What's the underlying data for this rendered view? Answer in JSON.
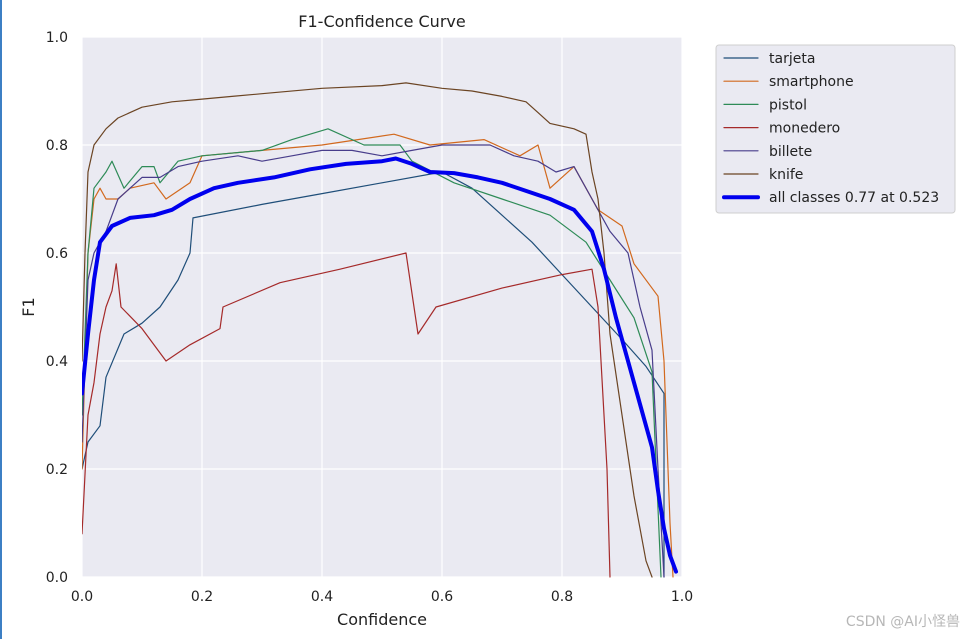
{
  "chart_data": {
    "type": "line",
    "title": "F1-Confidence Curve",
    "xlabel": "Confidence",
    "ylabel": "F1",
    "xlim": [
      0,
      1
    ],
    "ylim": [
      0,
      1
    ],
    "xticks": [
      "0.0",
      "0.2",
      "0.4",
      "0.6",
      "0.8",
      "1.0"
    ],
    "yticks": [
      "0.0",
      "0.2",
      "0.4",
      "0.6",
      "0.8",
      "1.0"
    ],
    "grid": true,
    "legend_position": "outside-top-right",
    "series": [
      {
        "name": "tarjeta",
        "color": "#1f4e79",
        "width": 1.2,
        "points": [
          [
            0.0,
            0.2
          ],
          [
            0.01,
            0.25
          ],
          [
            0.03,
            0.28
          ],
          [
            0.04,
            0.37
          ],
          [
            0.07,
            0.45
          ],
          [
            0.1,
            0.47
          ],
          [
            0.13,
            0.5
          ],
          [
            0.16,
            0.55
          ],
          [
            0.18,
            0.6
          ],
          [
            0.185,
            0.665
          ],
          [
            0.3,
            0.69
          ],
          [
            0.4,
            0.71
          ],
          [
            0.5,
            0.73
          ],
          [
            0.6,
            0.75
          ],
          [
            0.65,
            0.72
          ],
          [
            0.7,
            0.67
          ],
          [
            0.75,
            0.62
          ],
          [
            0.8,
            0.56
          ],
          [
            0.85,
            0.5
          ],
          [
            0.9,
            0.44
          ],
          [
            0.94,
            0.39
          ],
          [
            0.97,
            0.34
          ],
          [
            0.97,
            0.0
          ]
        ]
      },
      {
        "name": "smartphone",
        "color": "#d2691e",
        "width": 1.2,
        "points": [
          [
            0.0,
            0.2
          ],
          [
            0.01,
            0.6
          ],
          [
            0.02,
            0.7
          ],
          [
            0.03,
            0.72
          ],
          [
            0.04,
            0.7
          ],
          [
            0.06,
            0.7
          ],
          [
            0.08,
            0.72
          ],
          [
            0.12,
            0.73
          ],
          [
            0.14,
            0.7
          ],
          [
            0.18,
            0.73
          ],
          [
            0.2,
            0.78
          ],
          [
            0.3,
            0.79
          ],
          [
            0.4,
            0.8
          ],
          [
            0.52,
            0.82
          ],
          [
            0.58,
            0.8
          ],
          [
            0.67,
            0.81
          ],
          [
            0.73,
            0.78
          ],
          [
            0.76,
            0.8
          ],
          [
            0.78,
            0.72
          ],
          [
            0.82,
            0.76
          ],
          [
            0.86,
            0.68
          ],
          [
            0.9,
            0.65
          ],
          [
            0.92,
            0.58
          ],
          [
            0.96,
            0.52
          ],
          [
            0.97,
            0.4
          ],
          [
            0.98,
            0.1
          ],
          [
            0.985,
            0.0
          ]
        ]
      },
      {
        "name": "pistol",
        "color": "#2e8b57",
        "width": 1.2,
        "points": [
          [
            0.0,
            0.3
          ],
          [
            0.01,
            0.6
          ],
          [
            0.02,
            0.72
          ],
          [
            0.04,
            0.75
          ],
          [
            0.05,
            0.77
          ],
          [
            0.07,
            0.72
          ],
          [
            0.1,
            0.76
          ],
          [
            0.12,
            0.76
          ],
          [
            0.13,
            0.73
          ],
          [
            0.16,
            0.77
          ],
          [
            0.2,
            0.78
          ],
          [
            0.3,
            0.79
          ],
          [
            0.35,
            0.81
          ],
          [
            0.41,
            0.83
          ],
          [
            0.47,
            0.8
          ],
          [
            0.53,
            0.8
          ],
          [
            0.55,
            0.77
          ],
          [
            0.62,
            0.73
          ],
          [
            0.7,
            0.7
          ],
          [
            0.78,
            0.67
          ],
          [
            0.84,
            0.62
          ],
          [
            0.88,
            0.55
          ],
          [
            0.92,
            0.48
          ],
          [
            0.95,
            0.38
          ],
          [
            0.965,
            0.0
          ]
        ]
      },
      {
        "name": "monedero",
        "color": "#a52a2a",
        "width": 1.2,
        "points": [
          [
            0.0,
            0.08
          ],
          [
            0.01,
            0.3
          ],
          [
            0.02,
            0.36
          ],
          [
            0.03,
            0.45
          ],
          [
            0.04,
            0.5
          ],
          [
            0.05,
            0.53
          ],
          [
            0.057,
            0.58
          ],
          [
            0.065,
            0.5
          ],
          [
            0.1,
            0.46
          ],
          [
            0.14,
            0.4
          ],
          [
            0.18,
            0.43
          ],
          [
            0.23,
            0.46
          ],
          [
            0.235,
            0.5
          ],
          [
            0.33,
            0.545
          ],
          [
            0.43,
            0.57
          ],
          [
            0.54,
            0.6
          ],
          [
            0.56,
            0.45
          ],
          [
            0.59,
            0.5
          ],
          [
            0.7,
            0.535
          ],
          [
            0.8,
            0.56
          ],
          [
            0.85,
            0.57
          ],
          [
            0.86,
            0.5
          ],
          [
            0.875,
            0.2
          ],
          [
            0.88,
            0.0
          ]
        ]
      },
      {
        "name": "billete",
        "color": "#483d8b",
        "width": 1.2,
        "points": [
          [
            0.0,
            0.25
          ],
          [
            0.01,
            0.55
          ],
          [
            0.02,
            0.6
          ],
          [
            0.04,
            0.64
          ],
          [
            0.06,
            0.7
          ],
          [
            0.08,
            0.72
          ],
          [
            0.1,
            0.74
          ],
          [
            0.13,
            0.74
          ],
          [
            0.16,
            0.76
          ],
          [
            0.2,
            0.77
          ],
          [
            0.26,
            0.78
          ],
          [
            0.3,
            0.77
          ],
          [
            0.35,
            0.78
          ],
          [
            0.4,
            0.79
          ],
          [
            0.45,
            0.79
          ],
          [
            0.5,
            0.78
          ],
          [
            0.55,
            0.79
          ],
          [
            0.6,
            0.8
          ],
          [
            0.68,
            0.8
          ],
          [
            0.72,
            0.78
          ],
          [
            0.76,
            0.77
          ],
          [
            0.79,
            0.75
          ],
          [
            0.82,
            0.76
          ],
          [
            0.85,
            0.7
          ],
          [
            0.88,
            0.64
          ],
          [
            0.91,
            0.6
          ],
          [
            0.93,
            0.5
          ],
          [
            0.95,
            0.42
          ],
          [
            0.96,
            0.2
          ],
          [
            0.97,
            0.0
          ]
        ]
      },
      {
        "name": "knife",
        "color": "#6b4423",
        "width": 1.2,
        "points": [
          [
            0.0,
            0.4
          ],
          [
            0.005,
            0.6
          ],
          [
            0.01,
            0.75
          ],
          [
            0.02,
            0.8
          ],
          [
            0.04,
            0.83
          ],
          [
            0.06,
            0.85
          ],
          [
            0.08,
            0.86
          ],
          [
            0.1,
            0.87
          ],
          [
            0.15,
            0.88
          ],
          [
            0.2,
            0.885
          ],
          [
            0.25,
            0.89
          ],
          [
            0.3,
            0.895
          ],
          [
            0.4,
            0.905
          ],
          [
            0.5,
            0.91
          ],
          [
            0.54,
            0.915
          ],
          [
            0.6,
            0.905
          ],
          [
            0.65,
            0.9
          ],
          [
            0.7,
            0.89
          ],
          [
            0.74,
            0.88
          ],
          [
            0.76,
            0.86
          ],
          [
            0.78,
            0.84
          ],
          [
            0.82,
            0.83
          ],
          [
            0.84,
            0.82
          ],
          [
            0.85,
            0.75
          ],
          [
            0.86,
            0.7
          ],
          [
            0.87,
            0.6
          ],
          [
            0.88,
            0.45
          ],
          [
            0.9,
            0.3
          ],
          [
            0.92,
            0.15
          ],
          [
            0.94,
            0.03
          ],
          [
            0.95,
            0.0
          ]
        ]
      },
      {
        "name": "all classes 0.77 at 0.523",
        "color": "#0000ee",
        "width": 4,
        "points": [
          [
            0.0,
            0.34
          ],
          [
            0.01,
            0.45
          ],
          [
            0.02,
            0.55
          ],
          [
            0.03,
            0.62
          ],
          [
            0.05,
            0.65
          ],
          [
            0.08,
            0.665
          ],
          [
            0.12,
            0.67
          ],
          [
            0.15,
            0.68
          ],
          [
            0.18,
            0.7
          ],
          [
            0.22,
            0.72
          ],
          [
            0.26,
            0.73
          ],
          [
            0.32,
            0.74
          ],
          [
            0.38,
            0.755
          ],
          [
            0.44,
            0.765
          ],
          [
            0.5,
            0.77
          ],
          [
            0.523,
            0.775
          ],
          [
            0.55,
            0.765
          ],
          [
            0.58,
            0.75
          ],
          [
            0.62,
            0.748
          ],
          [
            0.66,
            0.74
          ],
          [
            0.7,
            0.73
          ],
          [
            0.74,
            0.715
          ],
          [
            0.78,
            0.7
          ],
          [
            0.82,
            0.68
          ],
          [
            0.85,
            0.64
          ],
          [
            0.87,
            0.57
          ],
          [
            0.89,
            0.48
          ],
          [
            0.91,
            0.4
          ],
          [
            0.93,
            0.32
          ],
          [
            0.95,
            0.24
          ],
          [
            0.96,
            0.16
          ],
          [
            0.97,
            0.09
          ],
          [
            0.98,
            0.04
          ],
          [
            0.99,
            0.01
          ]
        ]
      }
    ]
  },
  "watermark": "CSDN @AI小怪兽"
}
